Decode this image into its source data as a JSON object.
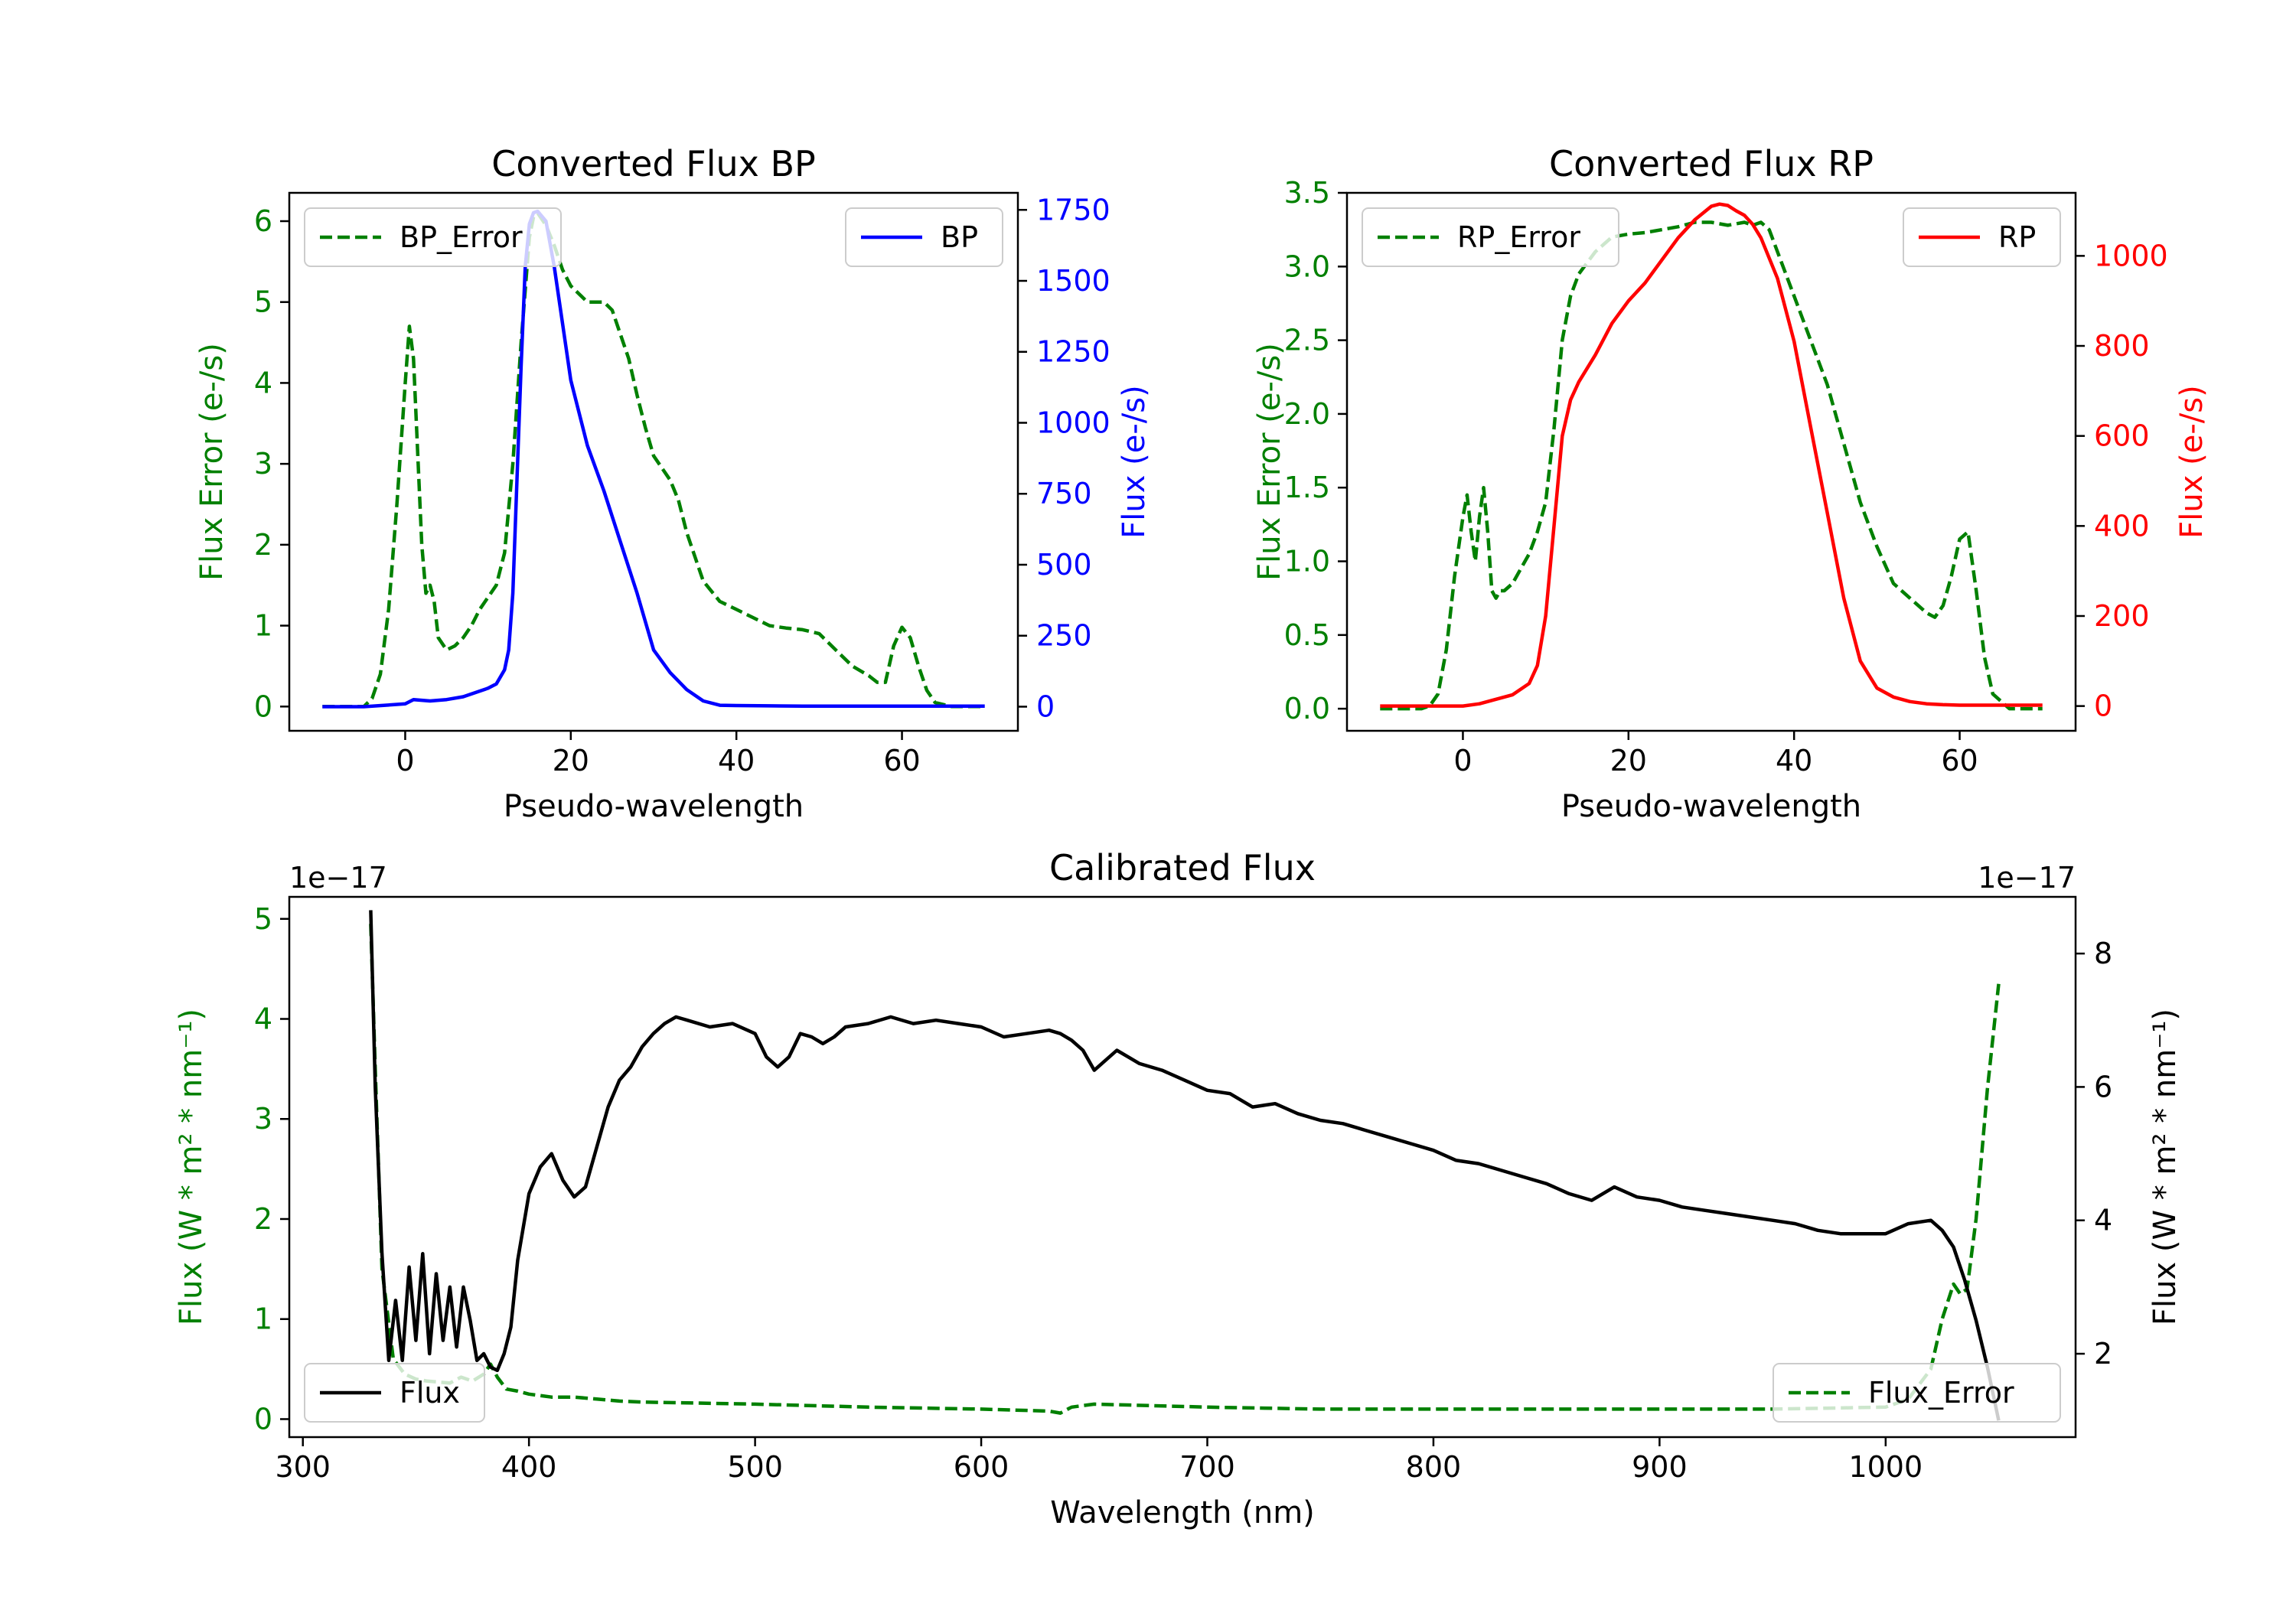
{
  "colors": {
    "bp": "#0000ff",
    "rp": "#ff0000",
    "error": "#008000",
    "flux": "#000000"
  },
  "chart_data": [
    {
      "type": "line",
      "title": "Converted Flux BP",
      "xlabel": "Pseudo-wavelength",
      "ylabel_left": "Flux Error (e-/s)",
      "ylabel_right": "Flux (e-/s)",
      "xlim": [
        -14,
        74
      ],
      "ylim_left": [
        -0.3,
        6.35
      ],
      "ylim_right": [
        -85,
        1810
      ],
      "xticks": [
        0,
        20,
        40,
        60
      ],
      "yticks_left": [
        0,
        1,
        2,
        3,
        4,
        5,
        6
      ],
      "yticks_right": [
        0,
        250,
        500,
        750,
        1000,
        1250,
        1500,
        1750
      ],
      "left_series": {
        "name": "BP_Error",
        "style": "dashed",
        "legend": "top-left",
        "x": [
          -10,
          -5,
          -4,
          -3,
          -2,
          -1,
          0,
          0.5,
          1,
          2,
          2.5,
          3,
          3.5,
          4,
          5,
          6,
          7,
          8,
          9,
          10,
          11,
          12,
          13,
          14,
          15,
          15.5,
          16,
          17,
          18,
          19,
          20,
          21,
          22,
          23,
          24,
          25,
          26,
          27,
          28,
          29,
          30,
          31,
          32,
          33,
          34,
          35,
          36,
          38,
          40,
          42,
          44,
          46,
          48,
          50,
          52,
          54,
          56,
          57,
          58,
          59,
          60,
          61,
          62,
          63,
          64,
          66,
          68,
          70
        ],
        "y": [
          0,
          0,
          0.1,
          0.4,
          1.2,
          2.5,
          4.0,
          4.7,
          4.3,
          2.0,
          1.4,
          1.5,
          1.3,
          0.85,
          0.7,
          0.75,
          0.85,
          1.0,
          1.2,
          1.35,
          1.5,
          1.9,
          3.0,
          4.5,
          5.8,
          6.05,
          6.1,
          5.95,
          5.7,
          5.4,
          5.2,
          5.1,
          5.0,
          5.0,
          5.0,
          4.9,
          4.6,
          4.3,
          3.85,
          3.45,
          3.1,
          2.95,
          2.8,
          2.55,
          2.15,
          1.85,
          1.55,
          1.3,
          1.2,
          1.1,
          1.0,
          0.97,
          0.95,
          0.9,
          0.7,
          0.5,
          0.38,
          0.3,
          0.3,
          0.75,
          0.98,
          0.85,
          0.5,
          0.2,
          0.05,
          0,
          0,
          0
        ]
      },
      "right_series": {
        "name": "BP",
        "style": "solid",
        "legend": "top-right",
        "x": [
          -10,
          -5,
          0,
          1,
          3,
          5,
          7,
          9,
          10,
          11,
          12,
          12.5,
          13,
          13.5,
          14,
          14.5,
          15,
          15.5,
          16,
          17,
          18,
          19,
          20,
          22,
          24,
          26,
          28,
          30,
          32,
          34,
          36,
          38,
          40,
          44,
          48,
          52,
          56,
          60,
          65,
          70
        ],
        "y": [
          0,
          0,
          10,
          25,
          20,
          25,
          35,
          55,
          65,
          80,
          130,
          200,
          400,
          800,
          1200,
          1550,
          1700,
          1740,
          1745,
          1710,
          1550,
          1350,
          1150,
          920,
          760,
          580,
          400,
          200,
          120,
          60,
          20,
          5,
          4,
          3,
          2,
          2,
          2,
          2,
          2,
          2
        ]
      }
    },
    {
      "type": "line",
      "title": "Converted Flux RP",
      "xlabel": "Pseudo-wavelength",
      "ylabel_left": "Flux Error (e-/s)",
      "ylabel_right": "Flux (e-/s)",
      "xlim": [
        -14,
        74
      ],
      "ylim_left": [
        -0.15,
        3.5
      ],
      "ylim_right": [
        -55,
        1140
      ],
      "xticks": [
        0,
        20,
        40,
        60
      ],
      "yticks_left": [
        0.0,
        0.5,
        1.0,
        1.5,
        2.0,
        2.5,
        3.0,
        3.5
      ],
      "yticks_right": [
        0,
        200,
        400,
        600,
        800,
        1000
      ],
      "left_series": {
        "name": "RP_Error",
        "style": "dashed",
        "legend": "top-left",
        "x": [
          -10,
          -5,
          -4,
          -3,
          -2,
          -1,
          0,
          0.5,
          1,
          1.5,
          2,
          2.5,
          3,
          3.5,
          4,
          4.5,
          5,
          6,
          7,
          8,
          9,
          10,
          11,
          12,
          13,
          14,
          16,
          18,
          20,
          22,
          24,
          26,
          28,
          30,
          32,
          34,
          35,
          36,
          37,
          38,
          40,
          42,
          44,
          46,
          48,
          50,
          52,
          54,
          56,
          57,
          58,
          59,
          60,
          61,
          62,
          63,
          64,
          66,
          70
        ],
        "y": [
          0,
          0,
          0.02,
          0.1,
          0.4,
          0.9,
          1.3,
          1.45,
          1.2,
          1.0,
          1.3,
          1.5,
          1.2,
          0.8,
          0.75,
          0.8,
          0.8,
          0.85,
          0.95,
          1.05,
          1.2,
          1.4,
          1.9,
          2.5,
          2.8,
          2.95,
          3.1,
          3.2,
          3.22,
          3.23,
          3.25,
          3.27,
          3.3,
          3.3,
          3.28,
          3.3,
          3.28,
          3.3,
          3.25,
          3.1,
          2.8,
          2.5,
          2.2,
          1.8,
          1.4,
          1.1,
          0.85,
          0.75,
          0.65,
          0.62,
          0.7,
          0.9,
          1.15,
          1.2,
          0.8,
          0.35,
          0.1,
          0,
          0
        ]
      },
      "right_series": {
        "name": "RP",
        "style": "solid",
        "legend": "top-right",
        "x": [
          -10,
          -5,
          0,
          2,
          4,
          6,
          8,
          9,
          10,
          11,
          12,
          13,
          14,
          16,
          18,
          20,
          22,
          24,
          26,
          28,
          30,
          31,
          32,
          33,
          34,
          35,
          36,
          38,
          40,
          42,
          44,
          46,
          48,
          50,
          52,
          54,
          56,
          58,
          60,
          65,
          70
        ],
        "y": [
          0,
          0,
          0,
          5,
          15,
          25,
          50,
          90,
          200,
          400,
          600,
          680,
          720,
          780,
          850,
          900,
          940,
          990,
          1040,
          1080,
          1110,
          1115,
          1112,
          1100,
          1090,
          1070,
          1040,
          950,
          810,
          620,
          430,
          240,
          100,
          40,
          20,
          10,
          5,
          3,
          2,
          2,
          2
        ]
      }
    },
    {
      "type": "line",
      "title": "Calibrated Flux",
      "xlabel": "Wavelength (nm)",
      "ylabel_left": "Flux (W * m² * nm⁻¹)",
      "ylabel_right": "Flux (W * m² * nm⁻¹)",
      "offset_left": "1e−17",
      "offset_right": "1e−17",
      "xlim": [
        294,
        1084
      ],
      "ylim_left": [
        -0.18,
        5.22
      ],
      "ylim_right": [
        0.75,
        8.85
      ],
      "xticks": [
        300,
        400,
        500,
        600,
        700,
        800,
        900,
        1000
      ],
      "yticks_left": [
        0,
        1,
        2,
        3,
        4,
        5
      ],
      "yticks_right": [
        2,
        4,
        6,
        8
      ],
      "left_series": {
        "name": "Flux_Error",
        "style": "dashed",
        "legend": "bottom-right",
        "x": [
          330,
          332,
          335,
          340,
          345,
          350,
          355,
          360,
          365,
          370,
          375,
          380,
          383,
          386,
          390,
          395,
          400,
          410,
          420,
          430,
          440,
          450,
          500,
          550,
          600,
          630,
          635,
          640,
          650,
          700,
          750,
          800,
          850,
          900,
          950,
          1000,
          1010,
          1020,
          1025,
          1030,
          1033,
          1036,
          1040,
          1045,
          1050
        ],
        "y": [
          4.95,
          3.5,
          1.5,
          0.6,
          0.45,
          0.4,
          0.38,
          0.37,
          0.36,
          0.42,
          0.38,
          0.45,
          0.55,
          0.42,
          0.3,
          0.28,
          0.25,
          0.22,
          0.22,
          0.2,
          0.18,
          0.17,
          0.15,
          0.12,
          0.1,
          0.08,
          0.06,
          0.12,
          0.15,
          0.12,
          0.1,
          0.1,
          0.1,
          0.1,
          0.1,
          0.12,
          0.2,
          0.5,
          1.0,
          1.35,
          1.25,
          1.3,
          2.0,
          3.3,
          4.35
        ]
      },
      "right_series": {
        "name": "Flux",
        "style": "solid",
        "legend": "bottom-left",
        "x": [
          330,
          332,
          335,
          338,
          341,
          344,
          347,
          350,
          353,
          356,
          359,
          362,
          365,
          368,
          371,
          374,
          377,
          380,
          383,
          386,
          389,
          392,
          395,
          400,
          405,
          410,
          415,
          420,
          425,
          430,
          435,
          440,
          445,
          450,
          455,
          460,
          465,
          470,
          480,
          490,
          500,
          505,
          510,
          515,
          520,
          525,
          530,
          535,
          540,
          550,
          560,
          570,
          580,
          590,
          600,
          610,
          620,
          630,
          635,
          640,
          645,
          650,
          660,
          665,
          670,
          680,
          690,
          700,
          710,
          720,
          730,
          740,
          750,
          760,
          770,
          780,
          790,
          800,
          810,
          820,
          830,
          840,
          850,
          860,
          870,
          880,
          890,
          900,
          910,
          920,
          930,
          940,
          950,
          960,
          970,
          980,
          990,
          1000,
          1010,
          1020,
          1025,
          1030,
          1035,
          1040,
          1045,
          1050
        ],
        "y": [
          8.65,
          6.0,
          3.5,
          1.9,
          2.8,
          1.9,
          3.3,
          2.2,
          3.5,
          2.0,
          3.2,
          2.2,
          3.0,
          2.1,
          3.0,
          2.5,
          1.9,
          2.0,
          1.8,
          1.75,
          2.0,
          2.4,
          3.4,
          4.4,
          4.8,
          5.0,
          4.6,
          4.35,
          4.5,
          5.1,
          5.7,
          6.1,
          6.3,
          6.6,
          6.8,
          6.95,
          7.05,
          7.0,
          6.9,
          6.95,
          6.8,
          6.45,
          6.3,
          6.45,
          6.8,
          6.75,
          6.65,
          6.75,
          6.9,
          6.95,
          7.05,
          6.95,
          7.0,
          6.95,
          6.9,
          6.75,
          6.8,
          6.85,
          6.8,
          6.7,
          6.55,
          6.25,
          6.55,
          6.45,
          6.35,
          6.25,
          6.1,
          5.95,
          5.9,
          5.7,
          5.75,
          5.6,
          5.5,
          5.45,
          5.35,
          5.25,
          5.15,
          5.05,
          4.9,
          4.85,
          4.75,
          4.65,
          4.55,
          4.4,
          4.3,
          4.5,
          4.35,
          4.3,
          4.2,
          4.15,
          4.1,
          4.05,
          4.0,
          3.95,
          3.85,
          3.8,
          3.8,
          3.8,
          3.95,
          4.0,
          3.85,
          3.6,
          3.1,
          2.5,
          1.8,
          1.0
        ]
      }
    }
  ]
}
